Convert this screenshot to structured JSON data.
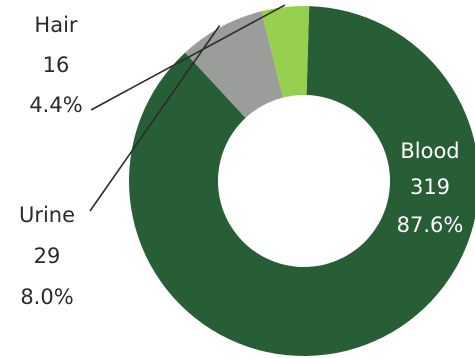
{
  "chart_data": {
    "type": "pie",
    "variant": "donut",
    "categories": [
      "Blood",
      "Urine",
      "Hair"
    ],
    "values": [
      319,
      29,
      16
    ],
    "percent_labels": [
      "87.6%",
      "8.0%",
      "4.4%"
    ],
    "colors": [
      "#275e36",
      "#9a9d99",
      "#97cf4e"
    ],
    "title": "",
    "legend": "none"
  }
}
